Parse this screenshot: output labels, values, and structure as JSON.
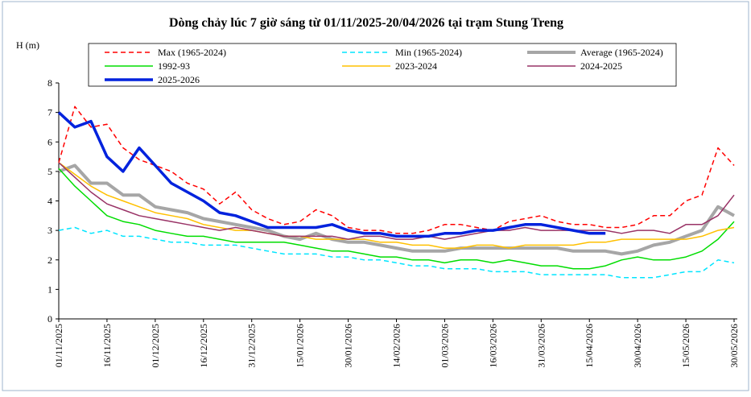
{
  "chart_data": {
    "type": "line",
    "title": "Dòng chảy lúc 7 giờ sáng từ 01/11/2025-20/04/2026 tại trạm Stung Treng",
    "y_label": "H (m)",
    "x": [
      "01/11/2025",
      "06/11/2025",
      "11/11/2025",
      "16/11/2025",
      "21/11/2025",
      "26/11/2025",
      "01/12/2025",
      "06/12/2025",
      "11/12/2025",
      "16/12/2025",
      "21/12/2025",
      "26/12/2025",
      "31/12/2025",
      "05/01/2026",
      "10/01/2026",
      "15/01/2026",
      "20/01/2026",
      "25/01/2026",
      "30/01/2026",
      "04/02/2026",
      "09/02/2026",
      "14/02/2026",
      "19/02/2026",
      "24/02/2026",
      "01/03/2026",
      "06/03/2026",
      "11/03/2026",
      "16/03/2026",
      "21/03/2026",
      "26/03/2026",
      "31/03/2026",
      "05/04/2026",
      "10/04/2026",
      "15/04/2026",
      "20/04/2026",
      "25/04/2026",
      "30/04/2026",
      "05/05/2026",
      "10/05/2026",
      "15/05/2026",
      "20/05/2026",
      "25/05/2026",
      "30/05/2026"
    ],
    "xlim": [
      "01/11/2025",
      "31/05/2026"
    ],
    "xticks": [
      "01/11/2025",
      "16/11/2025",
      "01/12/2025",
      "16/12/2025",
      "31/12/2025",
      "15/01/2026",
      "30/01/2026",
      "14/02/2026",
      "01/03/2026",
      "16/03/2026",
      "31/03/2026",
      "15/04/2026",
      "30/04/2026",
      "15/05/2026",
      "30/05/2026"
    ],
    "ylim": [
      0,
      8
    ],
    "yticks": [
      0,
      1,
      2,
      3,
      4,
      5,
      6,
      7,
      8
    ],
    "series": [
      {
        "name": "Max (1965-2024)",
        "color": "#ff0000",
        "dash": true,
        "width": 1.5,
        "values": [
          5.3,
          7.2,
          6.5,
          6.6,
          5.8,
          5.4,
          5.2,
          5.0,
          4.6,
          4.4,
          3.9,
          4.3,
          3.7,
          3.4,
          3.2,
          3.3,
          3.7,
          3.5,
          3.1,
          3.0,
          3.0,
          2.9,
          2.9,
          3.0,
          3.2,
          3.2,
          3.1,
          3.0,
          3.3,
          3.4,
          3.5,
          3.3,
          3.2,
          3.2,
          3.1,
          3.1,
          3.2,
          3.5,
          3.5,
          4.0,
          4.2,
          5.8,
          5.2
        ]
      },
      {
        "name": "Min (1965-2024)",
        "color": "#00e5ff",
        "dash": true,
        "width": 1.5,
        "values": [
          3.0,
          3.1,
          2.9,
          3.0,
          2.8,
          2.8,
          2.7,
          2.6,
          2.6,
          2.5,
          2.5,
          2.5,
          2.4,
          2.3,
          2.2,
          2.2,
          2.2,
          2.1,
          2.1,
          2.0,
          2.0,
          1.9,
          1.8,
          1.8,
          1.7,
          1.7,
          1.7,
          1.6,
          1.6,
          1.6,
          1.5,
          1.5,
          1.5,
          1.5,
          1.5,
          1.4,
          1.4,
          1.4,
          1.5,
          1.6,
          1.6,
          2.0,
          1.9
        ]
      },
      {
        "name": "Average (1965-2024)",
        "color": "#a6a6a6",
        "dash": false,
        "width": 4,
        "values": [
          5.0,
          5.2,
          4.6,
          4.6,
          4.2,
          4.2,
          3.8,
          3.7,
          3.6,
          3.4,
          3.3,
          3.2,
          3.1,
          3.0,
          2.8,
          2.7,
          2.9,
          2.7,
          2.6,
          2.6,
          2.5,
          2.4,
          2.3,
          2.3,
          2.3,
          2.4,
          2.4,
          2.4,
          2.4,
          2.4,
          2.4,
          2.4,
          2.3,
          2.3,
          2.3,
          2.2,
          2.3,
          2.5,
          2.6,
          2.8,
          3.0,
          3.8,
          3.5
        ]
      },
      {
        "name": "1992-93",
        "color": "#00dd00",
        "dash": false,
        "width": 1.5,
        "values": [
          5.1,
          4.5,
          4.0,
          3.5,
          3.3,
          3.2,
          3.0,
          2.9,
          2.8,
          2.8,
          2.7,
          2.6,
          2.6,
          2.6,
          2.6,
          2.5,
          2.4,
          2.3,
          2.3,
          2.2,
          2.1,
          2.1,
          2.0,
          2.0,
          1.9,
          2.0,
          2.0,
          1.9,
          2.0,
          1.9,
          1.8,
          1.8,
          1.7,
          1.7,
          1.8,
          2.0,
          2.1,
          2.0,
          2.0,
          2.1,
          2.3,
          2.7,
          3.3
        ]
      },
      {
        "name": "2023-2024",
        "color": "#ffc000",
        "dash": false,
        "width": 1.5,
        "values": [
          5.3,
          4.9,
          4.5,
          4.2,
          4.0,
          3.8,
          3.6,
          3.5,
          3.4,
          3.2,
          3.1,
          3.0,
          3.0,
          2.9,
          2.8,
          2.8,
          2.7,
          2.7,
          2.7,
          2.7,
          2.6,
          2.6,
          2.5,
          2.5,
          2.4,
          2.4,
          2.5,
          2.5,
          2.4,
          2.5,
          2.5,
          2.5,
          2.5,
          2.6,
          2.6,
          2.7,
          2.7,
          2.7,
          2.7,
          2.7,
          2.8,
          3.0,
          3.1
        ]
      },
      {
        "name": "2024-2025",
        "color": "#993366",
        "dash": false,
        "width": 1.5,
        "values": [
          5.3,
          4.8,
          4.3,
          3.9,
          3.7,
          3.5,
          3.4,
          3.3,
          3.2,
          3.1,
          3.0,
          3.1,
          3.0,
          2.9,
          2.8,
          2.8,
          2.8,
          2.8,
          2.7,
          2.8,
          2.8,
          2.7,
          2.7,
          2.8,
          2.7,
          2.8,
          2.9,
          3.0,
          3.0,
          3.1,
          3.0,
          3.0,
          3.0,
          3.0,
          3.0,
          2.9,
          3.0,
          3.0,
          2.9,
          3.2,
          3.2,
          3.5,
          4.2
        ]
      },
      {
        "name": "2025-2026",
        "color": "#0022dd",
        "dash": false,
        "width": 3.5,
        "values": [
          7.0,
          6.5,
          6.7,
          5.5,
          5.0,
          5.8,
          5.2,
          4.6,
          4.3,
          4.0,
          3.6,
          3.5,
          3.3,
          3.1,
          3.1,
          3.1,
          3.1,
          3.2,
          3.0,
          2.9,
          2.9,
          2.8,
          2.8,
          2.8,
          2.9,
          2.9,
          3.0,
          3.0,
          3.1,
          3.2,
          3.2,
          3.1,
          3.0,
          2.9,
          2.9,
          null,
          null,
          null,
          null,
          null,
          null,
          null,
          null
        ]
      }
    ]
  }
}
